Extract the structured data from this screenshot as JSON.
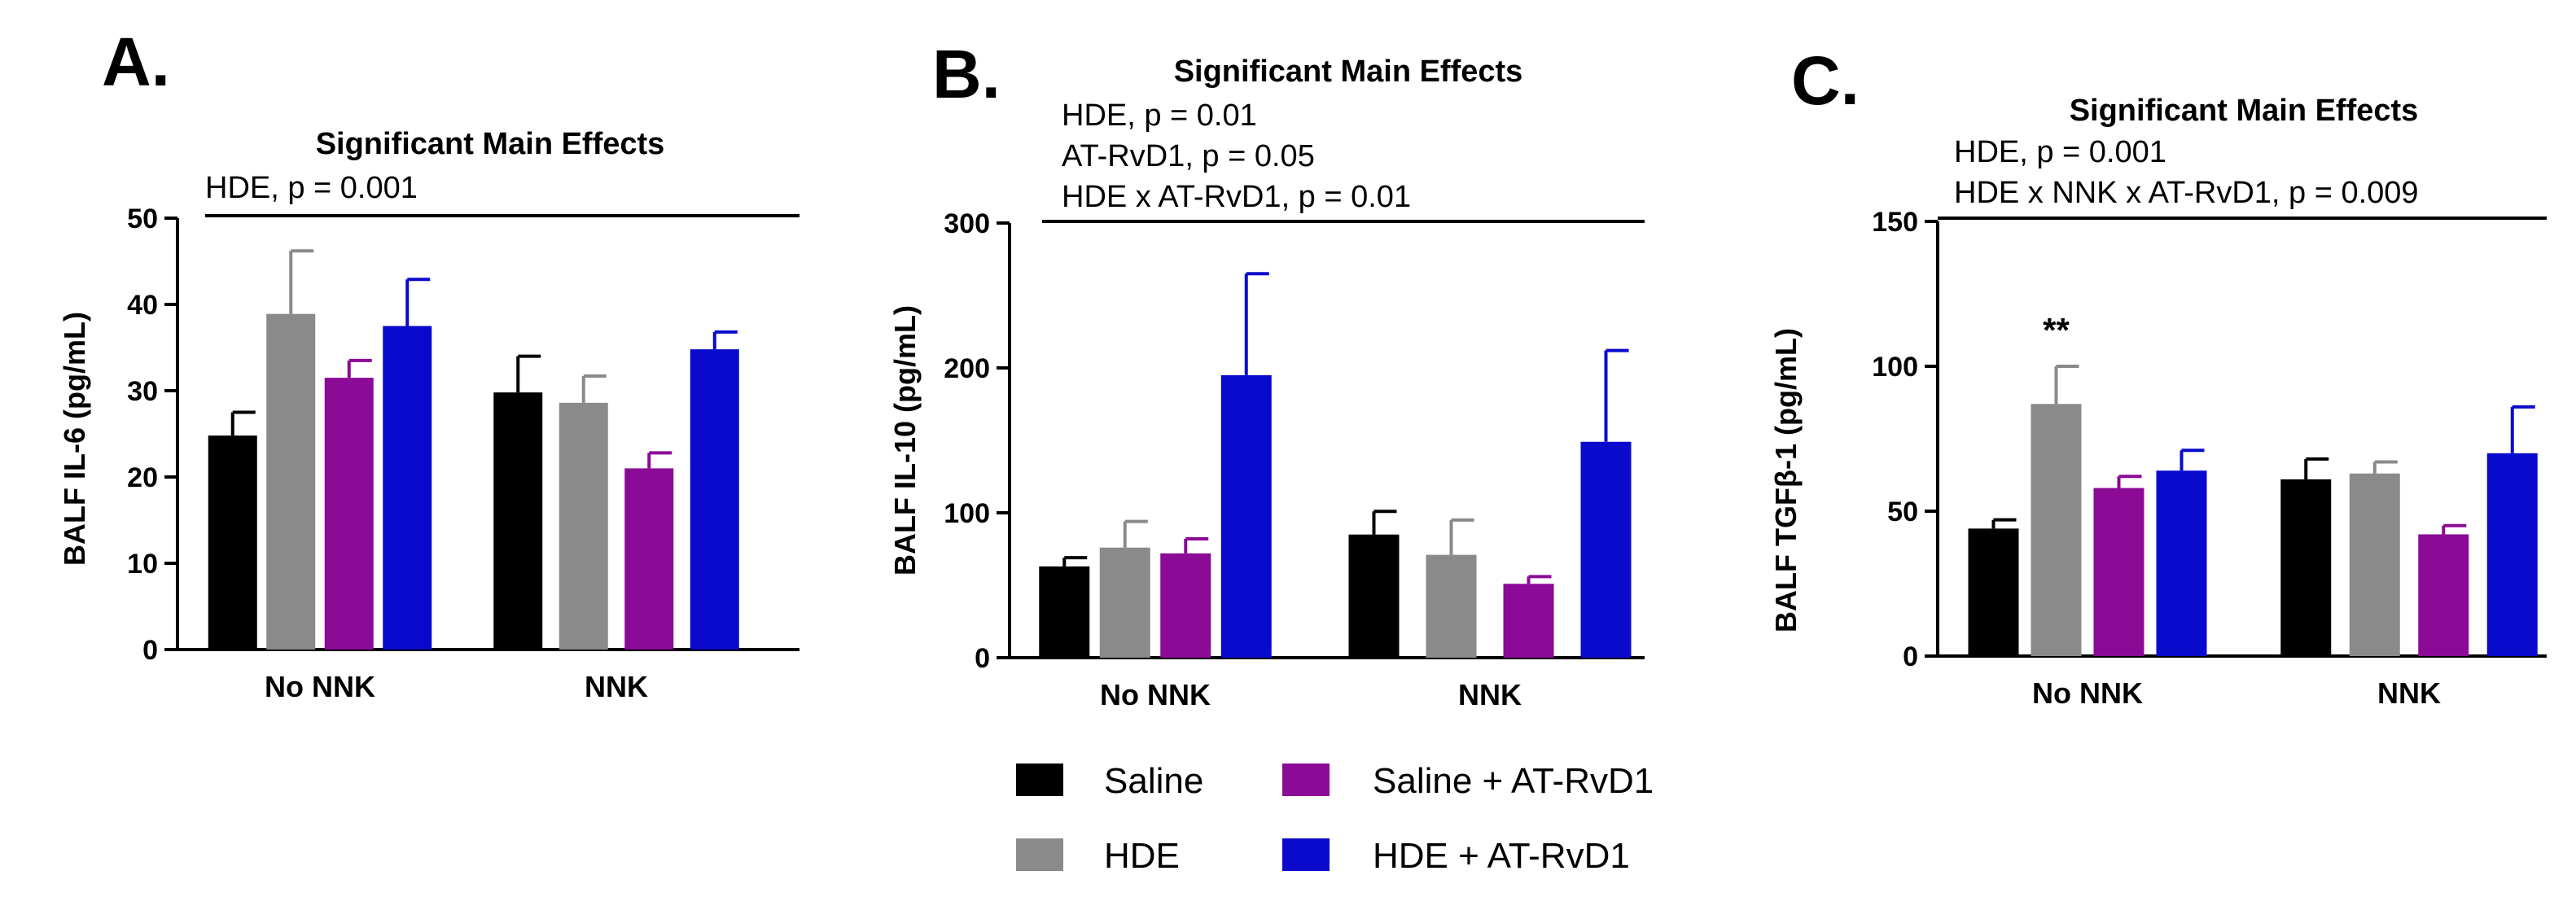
{
  "legend": [
    {
      "name": "Saline",
      "color": "#000000"
    },
    {
      "name": "HDE",
      "color": "#8a8a8a"
    },
    {
      "name": "Saline + AT-RvD1",
      "color": "#8b0a96"
    },
    {
      "name": "HDE + AT-RvD1",
      "color": "#0a0acc"
    }
  ],
  "chart_data": [
    {
      "type": "bar",
      "panel": "A.",
      "effects_title": "Significant Main Effects",
      "effects": [
        "HDE, p = 0.001"
      ],
      "ylabel": "BALF IL-6  (pg/mL)",
      "ylim": [
        0,
        50
      ],
      "yticks": [
        "0",
        "10",
        "20",
        "30",
        "40",
        "50"
      ],
      "categories": [
        "No NNK",
        "NNK"
      ],
      "series": [
        {
          "name": "Saline",
          "values": [
            24.8,
            29.8
          ],
          "errors": [
            2.7,
            4.2
          ]
        },
        {
          "name": "HDE",
          "values": [
            38.9,
            28.6
          ],
          "errors": [
            7.3,
            3.1
          ]
        },
        {
          "name": "Saline + AT-RvD1",
          "values": [
            31.5,
            21.0
          ],
          "errors": [
            2.0,
            1.8
          ]
        },
        {
          "name": "HDE + AT-RvD1",
          "values": [
            37.5,
            34.8
          ],
          "errors": [
            5.4,
            2.0
          ]
        }
      ],
      "annotations": []
    },
    {
      "type": "bar",
      "panel": "B.",
      "effects_title": "Significant Main Effects",
      "effects": [
        "HDE, p = 0.01",
        "AT-RvD1, p = 0.05",
        "HDE x AT-RvD1, p = 0.01"
      ],
      "ylabel": "BALF IL-10  (pg/mL)",
      "ylim": [
        0,
        300
      ],
      "yticks": [
        "0",
        "100",
        "200",
        "300"
      ],
      "categories": [
        "No NNK",
        "NNK"
      ],
      "series": [
        {
          "name": "Saline",
          "values": [
            63,
            85
          ],
          "errors": [
            6,
            16
          ]
        },
        {
          "name": "HDE",
          "values": [
            76,
            71
          ],
          "errors": [
            18,
            24
          ]
        },
        {
          "name": "Saline + AT-RvD1",
          "values": [
            72,
            51
          ],
          "errors": [
            10,
            5
          ]
        },
        {
          "name": "HDE + AT-RvD1",
          "values": [
            195,
            149
          ],
          "errors": [
            70,
            63
          ]
        }
      ],
      "annotations": []
    },
    {
      "type": "bar",
      "panel": "C.",
      "effects_title": "Significant Main Effects",
      "effects": [
        "HDE, p = 0.001",
        "HDE x NNK x AT-RvD1, p = 0.009"
      ],
      "ylabel": "BALF TGFβ-1 (pg/mL)",
      "ylim": [
        0,
        150
      ],
      "yticks": [
        "0",
        "50",
        "100",
        "150"
      ],
      "categories": [
        "No NNK",
        "NNK"
      ],
      "series": [
        {
          "name": "Saline",
          "values": [
            44,
            61
          ],
          "errors": [
            3,
            7
          ]
        },
        {
          "name": "HDE",
          "values": [
            87,
            63
          ],
          "errors": [
            13,
            4
          ]
        },
        {
          "name": "Saline + AT-RvD1",
          "values": [
            58,
            42
          ],
          "errors": [
            4,
            3
          ]
        },
        {
          "name": "HDE + AT-RvD1",
          "values": [
            64,
            70
          ],
          "errors": [
            7,
            16
          ]
        }
      ],
      "annotations": [
        {
          "text": "**",
          "category": "No NNK",
          "series": "HDE"
        }
      ]
    }
  ]
}
